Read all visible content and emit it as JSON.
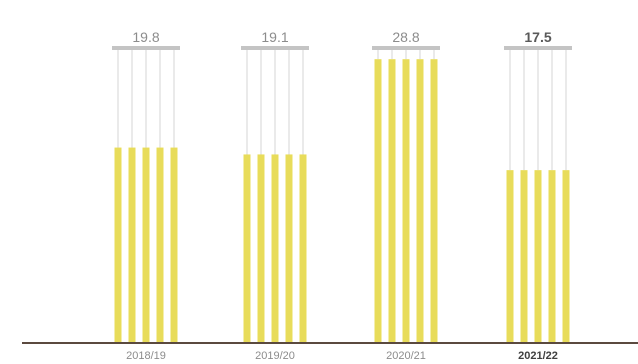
{
  "chart_data": {
    "type": "bar",
    "categories": [
      "2018/19",
      "2019/20",
      "2020/21",
      "2021/22"
    ],
    "values": [
      19.8,
      19.1,
      28.8,
      17.5
    ],
    "value_labels": [
      "19.8",
      "19.1",
      "28.8",
      "17.5"
    ],
    "highlighted_category": "2021/22",
    "title": "",
    "xlabel": "",
    "ylabel": "",
    "ylim": [
      0,
      30
    ],
    "grid": false,
    "legend": "none"
  },
  "colors": {
    "bar": "#e8dc5a",
    "string": "#d4d4d4",
    "cap": "#c4c4c4",
    "baseline": "#5b4a3f",
    "label": "#8c8c8c",
    "label_highlight": "#595959"
  }
}
